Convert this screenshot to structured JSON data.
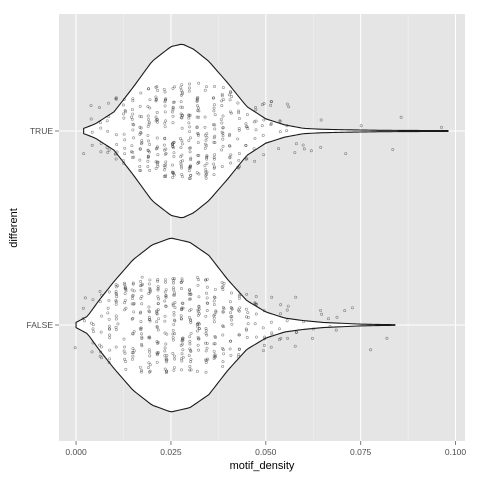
{
  "chart_data": {
    "type": "violin",
    "xlabel": "motif_density",
    "ylabel": "different",
    "xlim": [
      -0.0045,
      0.1025
    ],
    "x_ticks": [
      0.0,
      0.025,
      0.05,
      0.075,
      0.1
    ],
    "x_tick_labels": [
      "0.000",
      "0.025",
      "0.050",
      "0.075",
      "0.100"
    ],
    "categories": [
      "FALSE",
      "TRUE"
    ],
    "grid": true,
    "legend": "none",
    "overlay": "jittered points",
    "series": [
      {
        "category": "TRUE",
        "range": [
          0.002,
          0.098
        ],
        "density_profile": [
          [
            0.002,
            0.03
          ],
          [
            0.005,
            0.08
          ],
          [
            0.01,
            0.22
          ],
          [
            0.015,
            0.5
          ],
          [
            0.02,
            0.8
          ],
          [
            0.025,
            0.97
          ],
          [
            0.028,
            1.0
          ],
          [
            0.031,
            0.94
          ],
          [
            0.035,
            0.8
          ],
          [
            0.04,
            0.55
          ],
          [
            0.045,
            0.28
          ],
          [
            0.05,
            0.14
          ],
          [
            0.055,
            0.07
          ],
          [
            0.06,
            0.03
          ],
          [
            0.065,
            0.02
          ],
          [
            0.07,
            0.015
          ],
          [
            0.08,
            0.008
          ],
          [
            0.09,
            0.006
          ],
          [
            0.098,
            0.005
          ]
        ],
        "point_extent": [
          0.002,
          0.098
        ]
      },
      {
        "category": "FALSE",
        "range": [
          0.0,
          0.084
        ],
        "density_profile": [
          [
            0.0,
            0.03
          ],
          [
            0.003,
            0.1
          ],
          [
            0.006,
            0.28
          ],
          [
            0.01,
            0.5
          ],
          [
            0.015,
            0.75
          ],
          [
            0.02,
            0.92
          ],
          [
            0.025,
            1.0
          ],
          [
            0.03,
            0.95
          ],
          [
            0.035,
            0.8
          ],
          [
            0.04,
            0.52
          ],
          [
            0.045,
            0.28
          ],
          [
            0.05,
            0.15
          ],
          [
            0.055,
            0.08
          ],
          [
            0.06,
            0.05
          ],
          [
            0.065,
            0.03
          ],
          [
            0.07,
            0.02
          ],
          [
            0.075,
            0.01
          ],
          [
            0.08,
            0.006
          ],
          [
            0.084,
            0.004
          ]
        ],
        "point_extent": [
          0.0,
          0.084
        ]
      }
    ],
    "colors": {
      "panel": "#e5e5e5",
      "grid_major": "#ffffff",
      "grid_minor": "#f2f2f2",
      "violin_fill": "#ffffff",
      "violin_stroke": "#1a1a1a",
      "point": "#333333"
    }
  }
}
